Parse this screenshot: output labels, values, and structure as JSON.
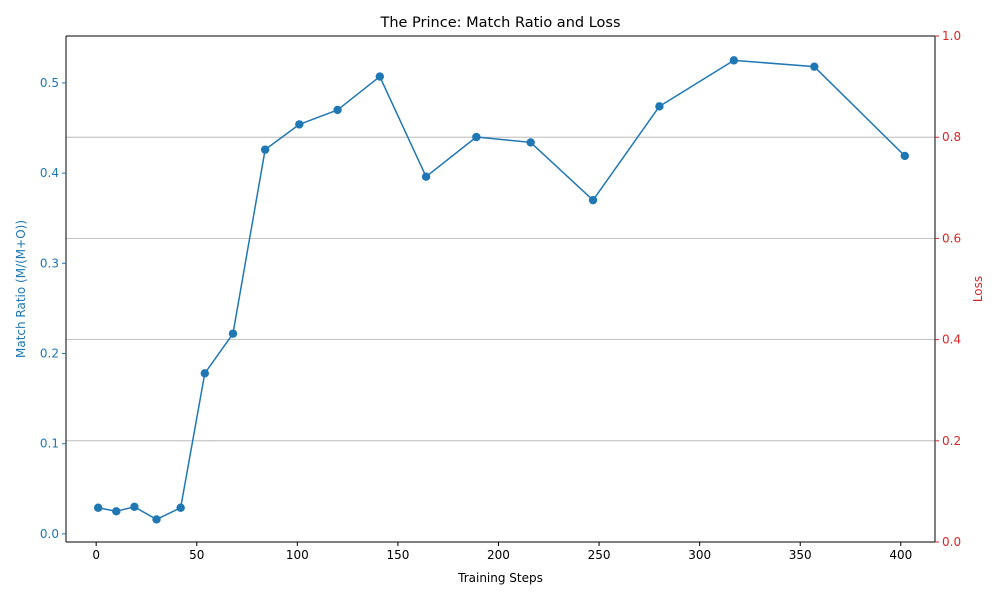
{
  "chart_data": {
    "type": "line",
    "title": "The Prince: Match Ratio and Loss",
    "xlabel": "Training Steps",
    "ylabel_left": "Match Ratio (M/(M+O))",
    "ylabel_right": "Loss",
    "xlim": [
      -15,
      417
    ],
    "ylim_left": [
      -0.009,
      0.552
    ],
    "ylim_right": [
      0,
      1.0
    ],
    "x_ticks": [
      0,
      50,
      100,
      150,
      200,
      250,
      300,
      350,
      400
    ],
    "y_left_ticks": [
      0.0,
      0.1,
      0.2,
      0.3,
      0.4,
      0.5
    ],
    "y_right_ticks": [
      0.0,
      0.2,
      0.4,
      0.6,
      0.8,
      1.0
    ],
    "grid": "horizontal lines at right-axis ticks",
    "colors": {
      "series": "#1f77b4",
      "left_axis": "#1f77b4",
      "right_axis": "#d62728",
      "grid": "#b0b0b0"
    },
    "series": [
      {
        "axis": "left",
        "marker": "circle",
        "x": [
          1,
          10,
          19,
          30,
          42,
          54,
          68,
          84,
          101,
          120,
          141,
          164,
          189,
          216,
          247,
          280,
          317,
          357,
          402
        ],
        "y": [
          0.029,
          0.025,
          0.03,
          0.016,
          0.029,
          0.178,
          0.222,
          0.426,
          0.454,
          0.47,
          0.507,
          0.396,
          0.44,
          0.434,
          0.37,
          0.474,
          0.525,
          0.518,
          0.419
        ]
      }
    ]
  }
}
